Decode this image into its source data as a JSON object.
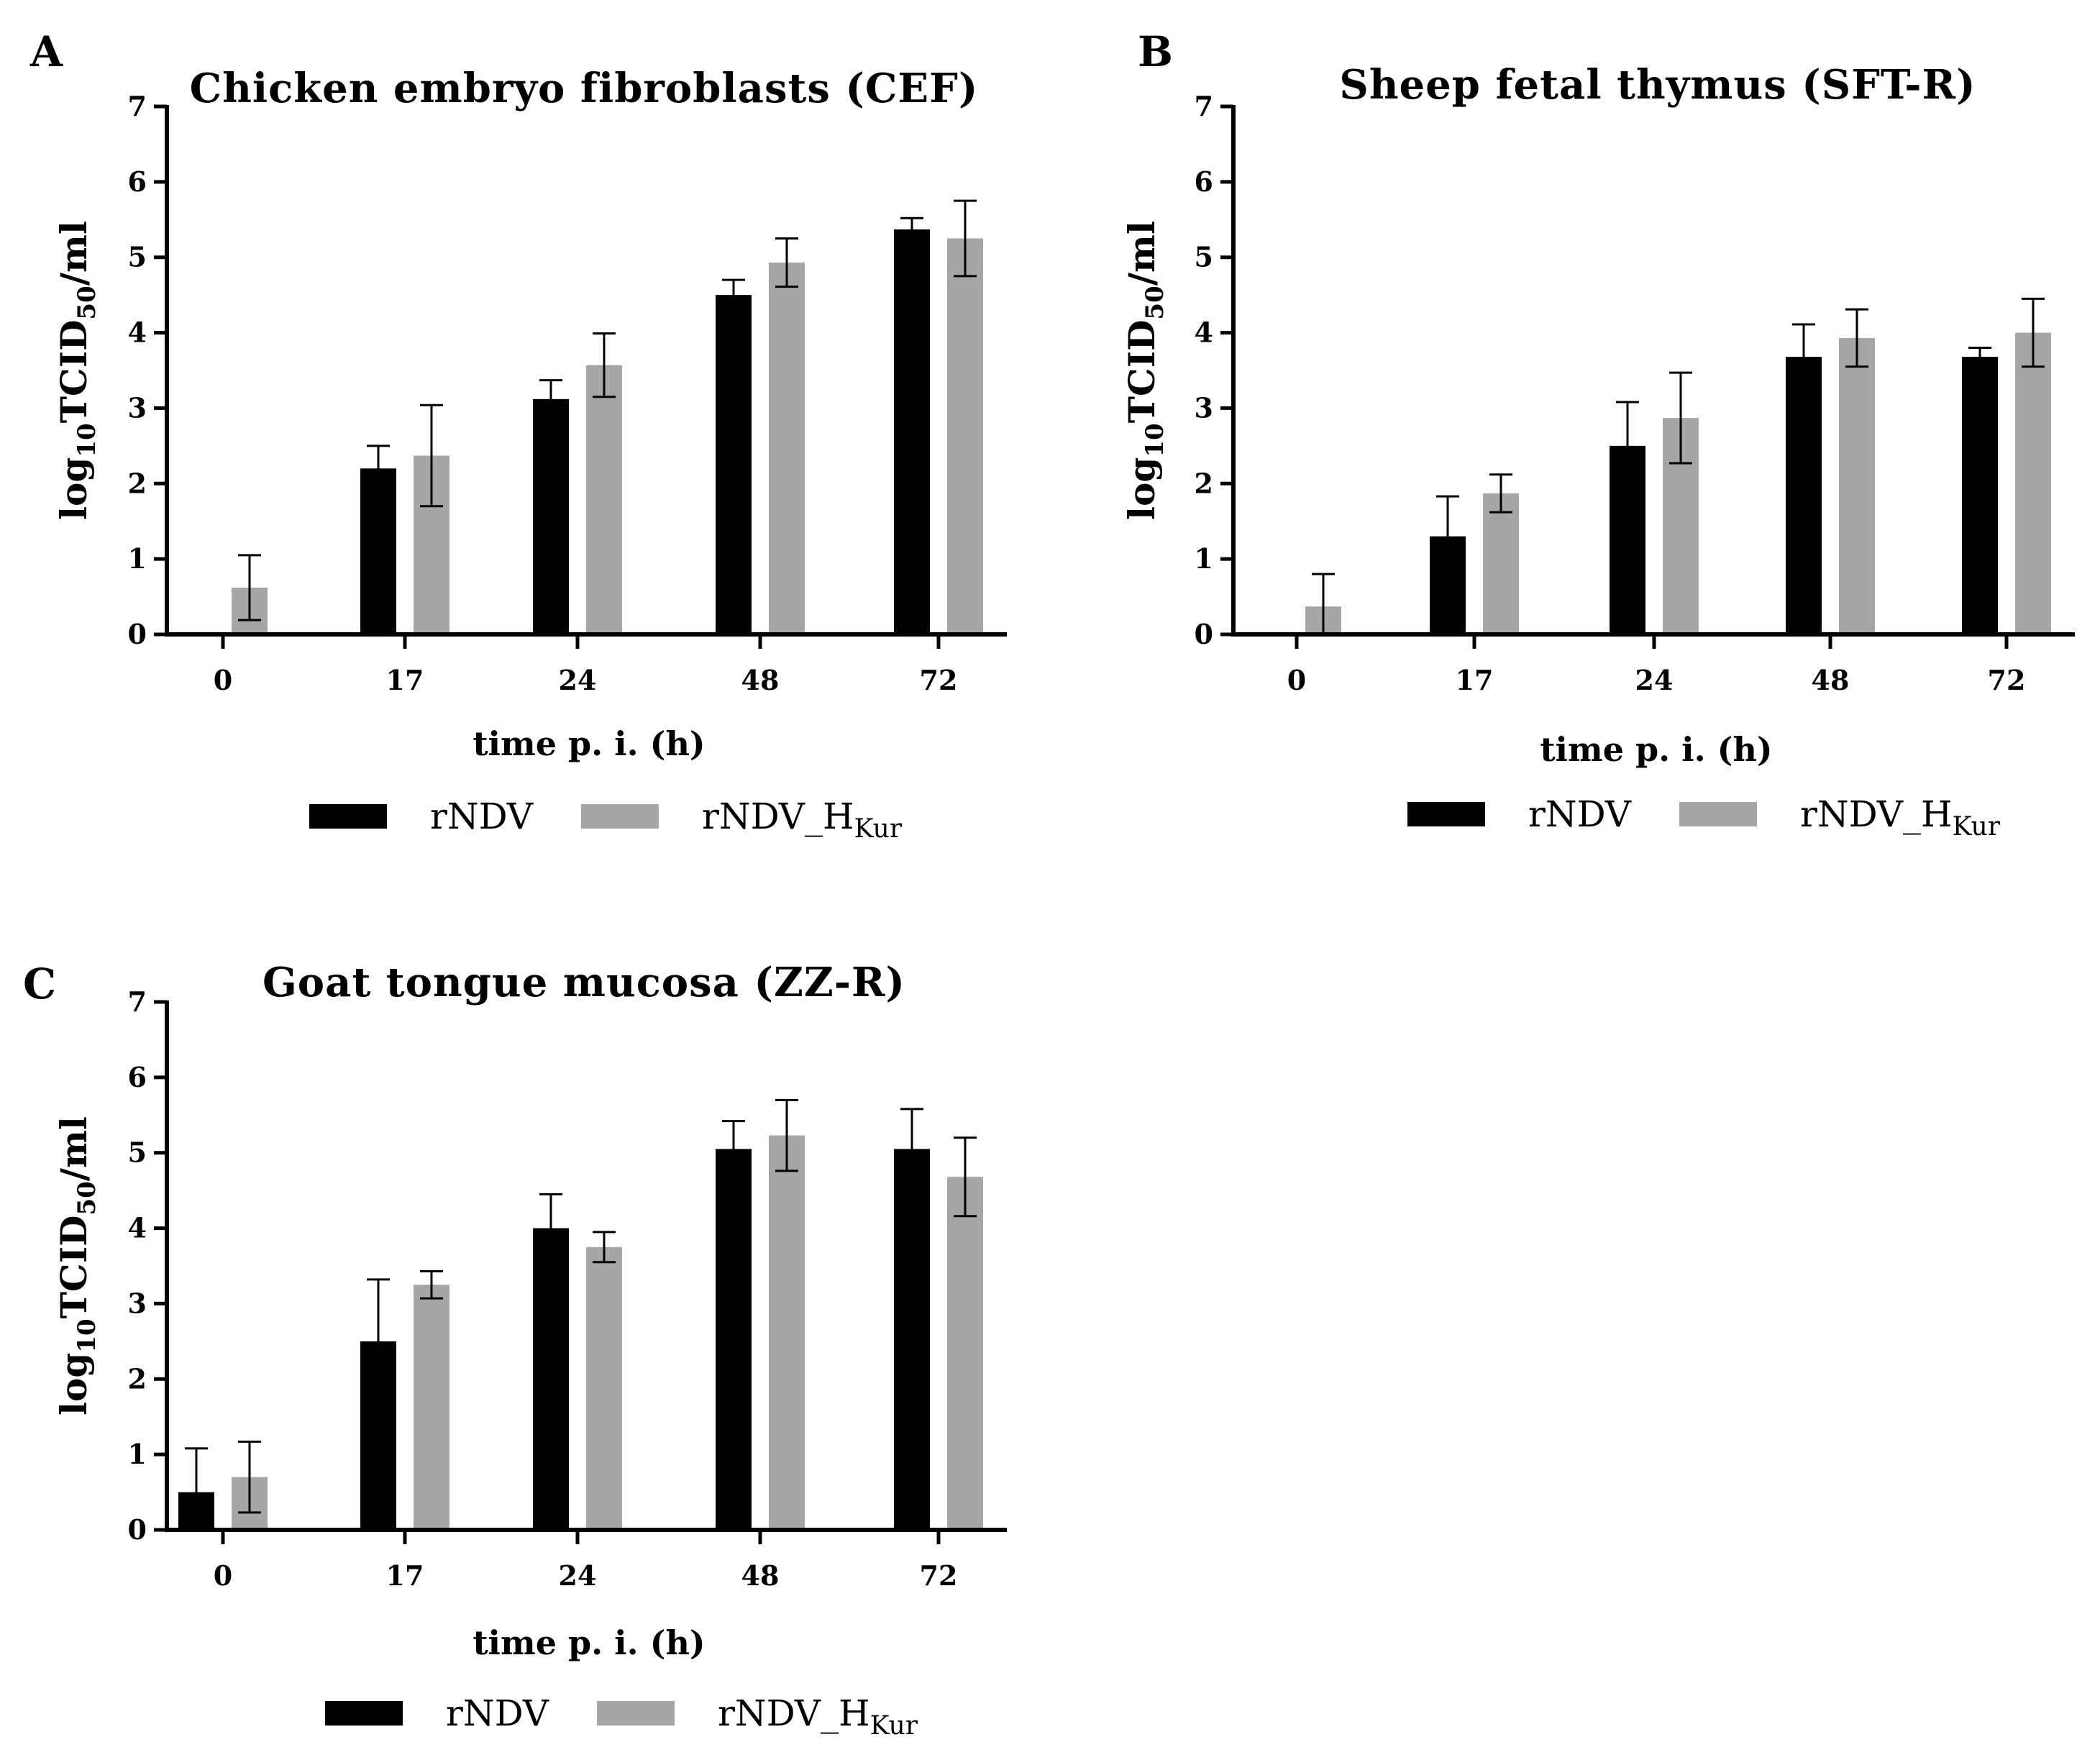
{
  "colors": {
    "rNDV": "#000000",
    "rNDV_HKur": "#a6a6a6",
    "axis": "#000000",
    "error_bar": "#000000"
  },
  "legend": {
    "entries": [
      {
        "name": "rNDV",
        "base": "rNDV",
        "sub": ""
      },
      {
        "name": "rNDV_HKur",
        "base": "rNDV_H",
        "sub": "Kur"
      }
    ]
  },
  "axis_text": {
    "xlabel": "time p. i. (h)",
    "ylabel_prefix": "log",
    "ylabel_sub1": "10",
    "ylabel_mid": "TCID",
    "ylabel_sub2": "50",
    "ylabel_suffix": "/ml"
  },
  "chart_data": [
    {
      "panel": "A",
      "type": "bar",
      "title": "Chicken embryo fibroblasts (CEF)",
      "xlabel": "time p. i. (h)",
      "ylabel": "log10TCID50/ml",
      "ylim": [
        0,
        7
      ],
      "yticks": [
        0,
        1,
        2,
        3,
        4,
        5,
        6,
        7
      ],
      "categories": [
        "0",
        "17",
        "24",
        "48",
        "72"
      ],
      "series": [
        {
          "name": "rNDV",
          "values": [
            0,
            2.2,
            3.12,
            4.5,
            5.37
          ],
          "errors": [
            0,
            0.3,
            0.25,
            0.2,
            0.15
          ]
        },
        {
          "name": "rNDV_HKur",
          "values": [
            0.62,
            2.37,
            3.57,
            4.93,
            5.25
          ],
          "errors": [
            0.43,
            0.67,
            0.42,
            0.32,
            0.5
          ]
        }
      ]
    },
    {
      "panel": "B",
      "type": "bar",
      "title": "Sheep fetal thymus (SFT-R)",
      "xlabel": "time p. i. (h)",
      "ylabel": "log10TCID50/ml",
      "ylim": [
        0,
        7
      ],
      "yticks": [
        0,
        1,
        2,
        3,
        4,
        5,
        6,
        7
      ],
      "categories": [
        "0",
        "17",
        "24",
        "48",
        "72"
      ],
      "series": [
        {
          "name": "rNDV",
          "values": [
            0,
            1.3,
            2.5,
            3.68,
            3.68
          ],
          "errors": [
            0,
            0.53,
            0.58,
            0.43,
            0.12
          ]
        },
        {
          "name": "rNDV_HKur",
          "values": [
            0.37,
            1.87,
            2.87,
            3.93,
            4.0
          ],
          "errors": [
            0.43,
            0.25,
            0.6,
            0.38,
            0.45
          ]
        }
      ]
    },
    {
      "panel": "C",
      "type": "bar",
      "title": "Goat tongue mucosa (ZZ-R)",
      "xlabel": "time p. i. (h)",
      "ylabel": "log10TCID50/ml",
      "ylim": [
        0,
        7
      ],
      "yticks": [
        0,
        1,
        2,
        3,
        4,
        5,
        6,
        7
      ],
      "categories": [
        "0",
        "17",
        "24",
        "48",
        "72"
      ],
      "series": [
        {
          "name": "rNDV",
          "values": [
            0.5,
            2.5,
            4.0,
            5.05,
            5.05
          ],
          "errors": [
            0.58,
            0.82,
            0.45,
            0.37,
            0.53
          ]
        },
        {
          "name": "rNDV_HKur",
          "values": [
            0.7,
            3.25,
            3.75,
            5.23,
            4.68
          ],
          "errors": [
            0.47,
            0.18,
            0.2,
            0.47,
            0.52
          ]
        }
      ]
    }
  ]
}
